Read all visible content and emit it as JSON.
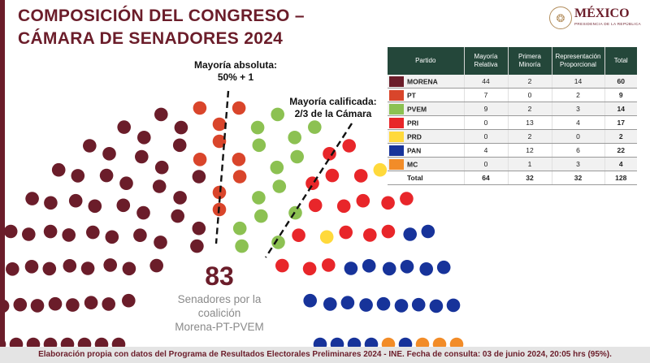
{
  "slide": {
    "title_line1": "COMPOSICIÓN DEL CONGRESO –",
    "title_line2": "CÁMARA DE SENADORES 2024",
    "title_color": "#6b1d2a",
    "accent_bar_color": "#6b1d2a"
  },
  "logo": {
    "icon": "eagle-seal-icon",
    "wordmark": "MÉXICO",
    "subtitle": "PRESIDENCIA DE LA REPÚBLICA",
    "color": "#6b1d2a",
    "seal_color": "#b38e5d"
  },
  "annotations": {
    "absolute_majority_line1": "Mayoría absoluta:",
    "absolute_majority_line2": "50% + 1",
    "qualified_majority_line1": "Mayoría calificada:",
    "qualified_majority_line2": "2/3 de la Cámara"
  },
  "coalition": {
    "seats": "83",
    "label_line1": "Senadores por la",
    "label_line2": "coalición",
    "label_line3": "Morena-PT-PVEM",
    "number_color": "#6b1d2a"
  },
  "table": {
    "header_bg": "#24473a",
    "headers": {
      "party": "Partido",
      "relative": "Mayoría Relativa",
      "first_minority": "Primera Minoría",
      "proportional": "Representación Proporcional",
      "total": "Total"
    },
    "rows": [
      {
        "party": "MORENA",
        "relative": "44",
        "first_minority": "2",
        "proportional": "14",
        "total": "60",
        "color": "#6b1d2a"
      },
      {
        "party": "PT",
        "relative": "7",
        "first_minority": "0",
        "proportional": "2",
        "total": "9",
        "color": "#d9452b"
      },
      {
        "party": "PVEM",
        "relative": "9",
        "first_minority": "2",
        "proportional": "3",
        "total": "14",
        "color": "#8cc152"
      },
      {
        "party": "PRI",
        "relative": "0",
        "first_minority": "13",
        "proportional": "4",
        "total": "17",
        "color": "#e8262a"
      },
      {
        "party": "PRD",
        "relative": "0",
        "first_minority": "2",
        "proportional": "0",
        "total": "2",
        "color": "#ffd93b"
      },
      {
        "party": "PAN",
        "relative": "4",
        "first_minority": "12",
        "proportional": "6",
        "total": "22",
        "color": "#17339a"
      },
      {
        "party": "MC",
        "relative": "0",
        "first_minority": "1",
        "proportional": "3",
        "total": "4",
        "color": "#f28c28"
      }
    ],
    "totals": {
      "label": "Total",
      "relative": "64",
      "first_minority": "32",
      "proportional": "32",
      "total": "128"
    }
  },
  "footer": {
    "text": "Elaboración propia con datos del Programa de Resultados Electorales Preliminares 2024 - INE. Fecha de consulta: 03 de junio 2024, 20:05 hrs (95%).",
    "bg": "#e4e4e4",
    "text_color": "#6b1d2a"
  }
}
